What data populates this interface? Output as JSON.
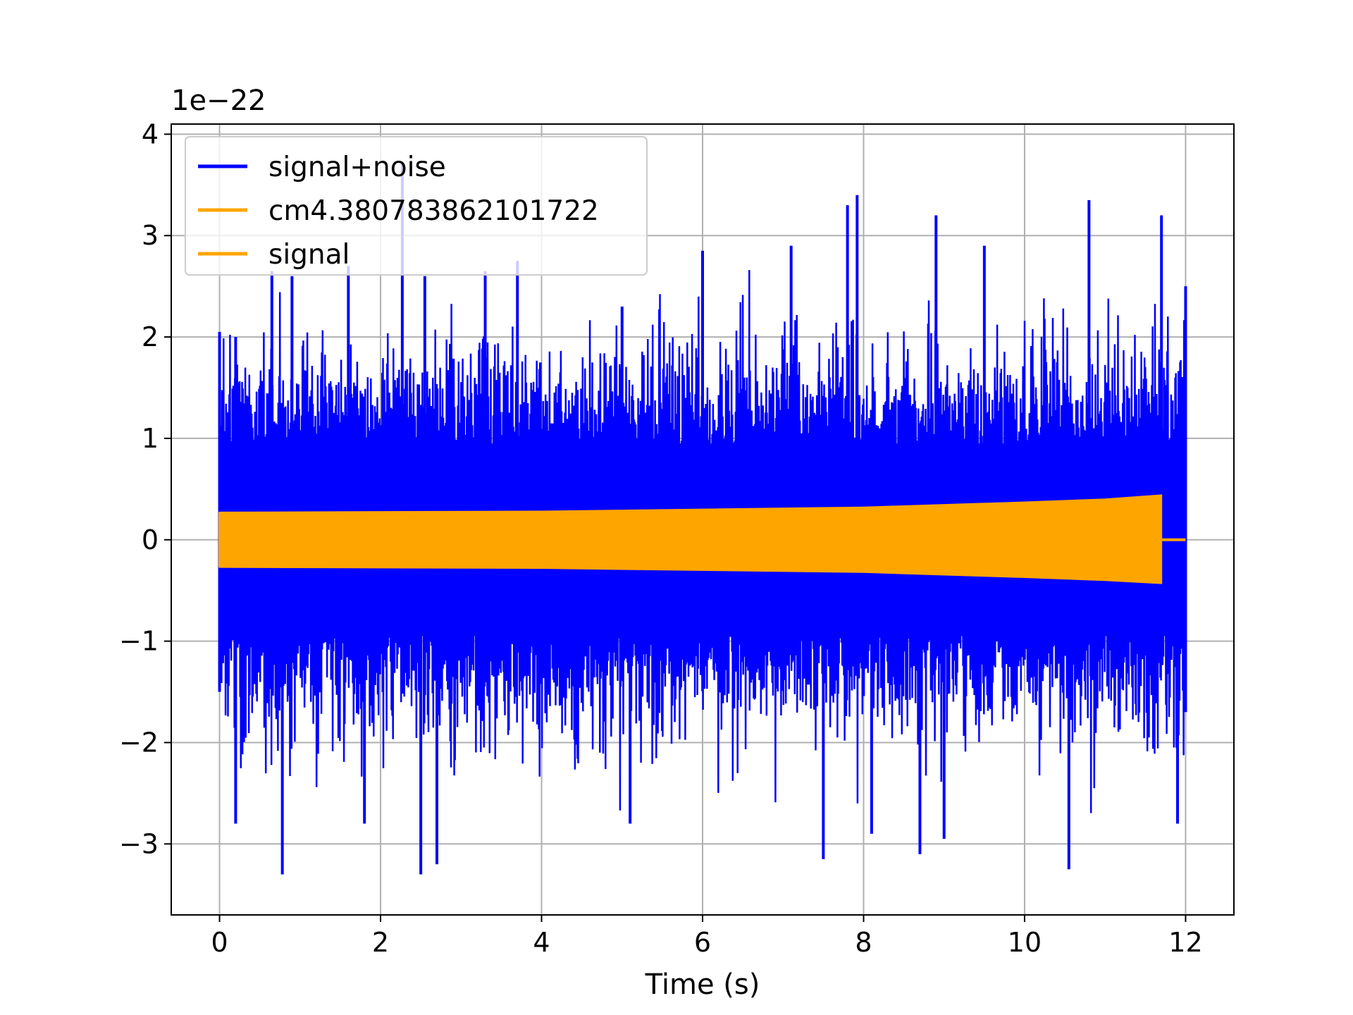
{
  "chart_data": {
    "type": "line",
    "xlabel": "Time (s)",
    "ylabel": "",
    "y_offset_label": "1e−22",
    "y_scale": 1e-22,
    "xlim": [
      -0.6,
      12.6
    ],
    "ylim": [
      -3.7,
      4.1
    ],
    "x_ticks": [
      0,
      2,
      4,
      6,
      8,
      10,
      12
    ],
    "x_tick_labels": [
      "0",
      "2",
      "4",
      "6",
      "8",
      "10",
      "12"
    ],
    "y_ticks": [
      -3,
      -2,
      -1,
      0,
      1,
      2,
      3,
      4
    ],
    "y_tick_labels": [
      "−3",
      "−2",
      "−1",
      "0",
      "1",
      "2",
      "3",
      "4"
    ],
    "grid": true,
    "legend_position": "top-left",
    "colors": {
      "signal_noise": "#0000ff",
      "signal": "#ffa500",
      "template": "#ffa500"
    },
    "series": [
      {
        "name": "signal+noise",
        "color": "#0000ff",
        "kind": "noise-band",
        "x_range": [
          0,
          12
        ],
        "typical_envelope": [
          -1.5,
          1.5
        ],
        "peaks": [
          {
            "x": 0.0,
            "y": 2.05
          },
          {
            "x": 0.2,
            "y": 2.0
          },
          {
            "x": 0.65,
            "y": 2.65
          },
          {
            "x": 0.9,
            "y": 2.6
          },
          {
            "x": 1.6,
            "y": 2.7
          },
          {
            "x": 2.27,
            "y": 3.7
          },
          {
            "x": 2.55,
            "y": 2.6
          },
          {
            "x": 3.3,
            "y": 2.65
          },
          {
            "x": 3.7,
            "y": 2.75
          },
          {
            "x": 5.0,
            "y": 2.3
          },
          {
            "x": 6.0,
            "y": 2.85
          },
          {
            "x": 7.1,
            "y": 2.9
          },
          {
            "x": 7.8,
            "y": 3.3
          },
          {
            "x": 7.92,
            "y": 3.4
          },
          {
            "x": 8.9,
            "y": 3.2
          },
          {
            "x": 9.5,
            "y": 2.9
          },
          {
            "x": 10.8,
            "y": 3.35
          },
          {
            "x": 11.7,
            "y": 3.2
          },
          {
            "x": 12.0,
            "y": 2.5
          }
        ],
        "troughs": [
          {
            "x": 0.0,
            "y": -1.5
          },
          {
            "x": 0.2,
            "y": -2.8
          },
          {
            "x": 0.78,
            "y": -3.3
          },
          {
            "x": 1.8,
            "y": -2.8
          },
          {
            "x": 2.5,
            "y": -3.3
          },
          {
            "x": 2.7,
            "y": -3.2
          },
          {
            "x": 5.1,
            "y": -2.8
          },
          {
            "x": 7.5,
            "y": -3.15
          },
          {
            "x": 8.1,
            "y": -2.9
          },
          {
            "x": 8.7,
            "y": -3.1
          },
          {
            "x": 9.0,
            "y": -2.95
          },
          {
            "x": 10.55,
            "y": -3.25
          },
          {
            "x": 11.9,
            "y": -2.8
          },
          {
            "x": 12.0,
            "y": -1.7
          }
        ]
      },
      {
        "name": "cm4.380783862101722",
        "color": "#ffa500",
        "kind": "line",
        "points": [
          {
            "x": 0,
            "y": 0
          },
          {
            "x": 12,
            "y": 0
          }
        ]
      },
      {
        "name": "signal",
        "color": "#ffa500",
        "kind": "envelope",
        "envelope_upper": [
          {
            "x": 0.0,
            "y": 0.27
          },
          {
            "x": 4.0,
            "y": 0.28
          },
          {
            "x": 8.0,
            "y": 0.32
          },
          {
            "x": 10.0,
            "y": 0.37
          },
          {
            "x": 11.0,
            "y": 0.4
          },
          {
            "x": 11.7,
            "y": 0.44
          }
        ],
        "envelope_lower": [
          {
            "x": 0.0,
            "y": -0.27
          },
          {
            "x": 4.0,
            "y": -0.28
          },
          {
            "x": 8.0,
            "y": -0.32
          },
          {
            "x": 10.0,
            "y": -0.37
          },
          {
            "x": 11.0,
            "y": -0.4
          },
          {
            "x": 11.7,
            "y": -0.43
          }
        ],
        "flat_after": {
          "x_start": 11.7,
          "x_end": 12.0,
          "y": 0
        }
      }
    ]
  }
}
